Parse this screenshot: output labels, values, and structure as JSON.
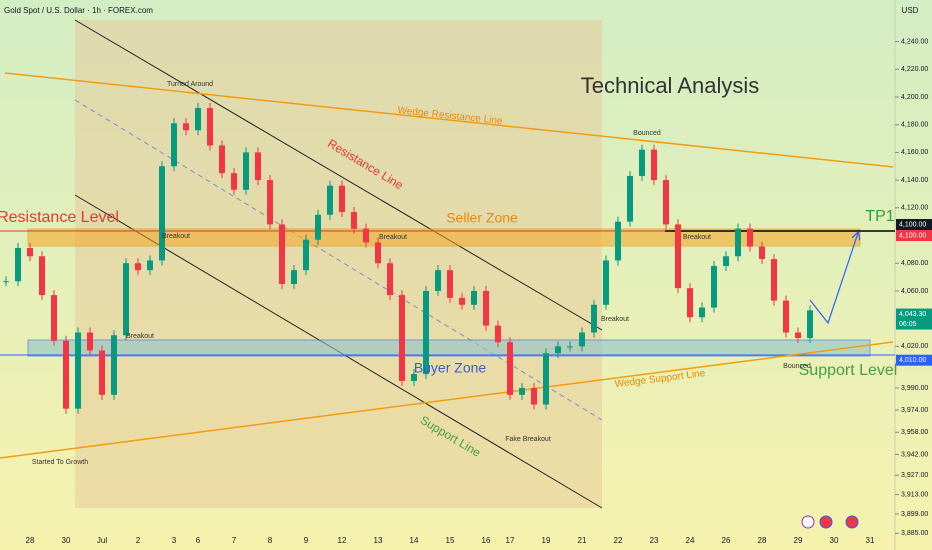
{
  "header": {
    "title": "Gold Spot / U.S. Dollar · 1h · FOREX.com",
    "currency": "USD"
  },
  "chart_data": {
    "type": "candlestick",
    "categories": [
      null,
      null,
      "28",
      null,
      null,
      "30",
      null,
      null,
      "Jul",
      null,
      null,
      "2",
      null,
      null,
      "3",
      null,
      "6",
      null,
      null,
      "7",
      null,
      null,
      "8",
      null,
      null,
      "9",
      null,
      null,
      "12",
      null,
      null,
      "13",
      null,
      null,
      "14",
      null,
      null,
      "15",
      null,
      null,
      "16",
      null,
      "17",
      null,
      null,
      "19",
      null,
      null,
      "21",
      null,
      null,
      "22",
      null,
      null,
      "23",
      null,
      null,
      "24",
      null,
      null,
      "26",
      null,
      null,
      "28",
      null,
      null,
      "29",
      null,
      null,
      "30",
      null,
      null,
      "31",
      null
    ],
    "series": [
      {
        "name": "Gold Spot",
        "up_color": "#089981",
        "down_color": "#f23645",
        "values": [
          4067,
          4091,
          4085,
          4057,
          4024,
          3975,
          4030,
          4017,
          3985,
          4028,
          4080,
          4075,
          4082,
          4150,
          4181,
          4176,
          4192,
          4165,
          4145,
          4133,
          4160,
          4140,
          4108,
          4065,
          4075,
          4097,
          4115,
          4136,
          4117,
          4105,
          4095,
          4080,
          4057,
          3995,
          4000,
          4060,
          4075,
          4055,
          4050,
          4060,
          4035,
          4023,
          3985,
          3990,
          3978,
          4015,
          4020,
          4020,
          4030,
          4050,
          4082,
          4110,
          4143,
          4162,
          4140,
          4108,
          4062,
          4041,
          4048,
          4078,
          4085,
          4105,
          4092,
          4083,
          4053,
          4030,
          4026,
          4046,
          null,
          null,
          null,
          null,
          null,
          null
        ]
      }
    ],
    "ylim": [
      3873,
      4270
    ],
    "yticks": [
      {
        "value": 4240,
        "label": "4,240.00"
      },
      {
        "value": 4220,
        "label": "4,220.00"
      },
      {
        "value": 4200,
        "label": "4,200.00"
      },
      {
        "value": 4180,
        "label": "4,180.00"
      },
      {
        "value": 4160,
        "label": "4,160.00"
      },
      {
        "value": 4140,
        "label": "4,140.00"
      },
      {
        "value": 4120,
        "label": "4,120.00"
      },
      {
        "value": 4080,
        "label": "4,080.00"
      },
      {
        "value": 4060,
        "label": "4,060.00"
      },
      {
        "value": 4020,
        "label": "4,020.00"
      },
      {
        "value": 3990,
        "label": "3,990.00"
      },
      {
        "value": 3974,
        "label": "3,974.00"
      },
      {
        "value": 3958,
        "label": "3,958.00"
      },
      {
        "value": 3942,
        "label": "3,942.00"
      },
      {
        "value": 3927,
        "label": "3,927.00"
      },
      {
        "value": 3913,
        "label": "3,913.00"
      },
      {
        "value": 3899,
        "label": "3,899.00"
      },
      {
        "value": 3885,
        "label": "3,885.00"
      }
    ],
    "price_labels": [
      {
        "value": 4100,
        "label": "4,100.00",
        "color": "#131722"
      },
      {
        "value": 4100,
        "label": "4,100.00",
        "color": "#f23645"
      },
      {
        "value": 4043.3,
        "label": "4,043.30",
        "color": "#089981"
      },
      {
        "value": 4010,
        "label": "4,010.00",
        "color": "#2962ff"
      }
    ],
    "countdown": "06:05",
    "annotations": [
      "Technical Analysis",
      "Wedge Resistance Line",
      "Resistance Line",
      "Seller Zone",
      "TP1",
      "Resistance Level",
      "Turned Around",
      "Breakout",
      "Breakout",
      "Breakout",
      "Breakout",
      "Breakout",
      "Bounced",
      "Buyer Zone",
      "Support Line",
      "Fake Breakout",
      "Wedge Support Line",
      "Support Level",
      "Bounced",
      "Started To Growth"
    ]
  }
}
